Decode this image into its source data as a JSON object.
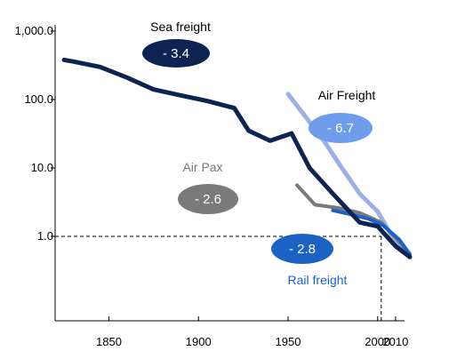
{
  "chart_data": {
    "type": "line",
    "title": "",
    "xlabel": "",
    "ylabel": "",
    "y_scale": "log",
    "xlim": [
      1820,
      2015
    ],
    "ylim": [
      0.09,
      1000
    ],
    "x_ticks": [
      {
        "value": 1850,
        "label": "1850"
      },
      {
        "value": 1900,
        "label": "1900"
      },
      {
        "value": 1950,
        "label": "1950"
      },
      {
        "value": 2000,
        "label": "2000"
      },
      {
        "value": 2010,
        "label": "2010"
      }
    ],
    "y_ticks": [
      {
        "value": 1000,
        "label": "1,000.0"
      },
      {
        "value": 100,
        "label": "100.0"
      },
      {
        "value": 10,
        "label": "10.0"
      },
      {
        "value": 1,
        "label": "1.0"
      }
    ],
    "reference_point": {
      "x": 2002,
      "y": 1.0
    },
    "grid": false,
    "series": [
      {
        "name": "Sea freight",
        "badge": "- 3.4",
        "color": "#0d2352",
        "badge_color": "#0d2352",
        "label_color": "#000000",
        "x": [
          1825,
          1830,
          1845,
          1860,
          1875,
          1890,
          1905,
          1920,
          1928,
          1940,
          1952,
          1962,
          1975,
          1990,
          2000,
          2010,
          2018
        ],
        "y": [
          380,
          360,
          300,
          210,
          140,
          115,
          95,
          75,
          35,
          25,
          32,
          10,
          4.2,
          1.6,
          1.4,
          0.72,
          0.5
        ]
      },
      {
        "name": "Air Freight",
        "badge": "- 6.7",
        "color": "#9bb1e6",
        "badge_color": "#6f9ceb",
        "label_color": "#000000",
        "x": [
          1950,
          1960,
          1970,
          1980,
          1990,
          2000,
          2008,
          2018
        ],
        "y": [
          120,
          55,
          25,
          10,
          4.2,
          2.3,
          1.0,
          0.5
        ]
      },
      {
        "name": "Air Pax",
        "badge": "- 2.6",
        "color": "#7a7a7a",
        "badge_color": "#7a7a7a",
        "label_color": "#777777",
        "x": [
          1955,
          1965,
          1978,
          1990,
          2002,
          2010,
          2018
        ],
        "y": [
          5.6,
          2.9,
          2.6,
          2.2,
          1.6,
          0.95,
          0.55
        ]
      },
      {
        "name": "Rail freight",
        "badge": "- 2.8",
        "color": "#1a62c4",
        "badge_color": "#1a62c4",
        "label_color": "#1a62c4",
        "x": [
          1975,
          1985,
          1995,
          2003,
          2012,
          2018
        ],
        "y": [
          2.4,
          2.1,
          1.8,
          1.45,
          0.9,
          0.55
        ]
      }
    ]
  }
}
